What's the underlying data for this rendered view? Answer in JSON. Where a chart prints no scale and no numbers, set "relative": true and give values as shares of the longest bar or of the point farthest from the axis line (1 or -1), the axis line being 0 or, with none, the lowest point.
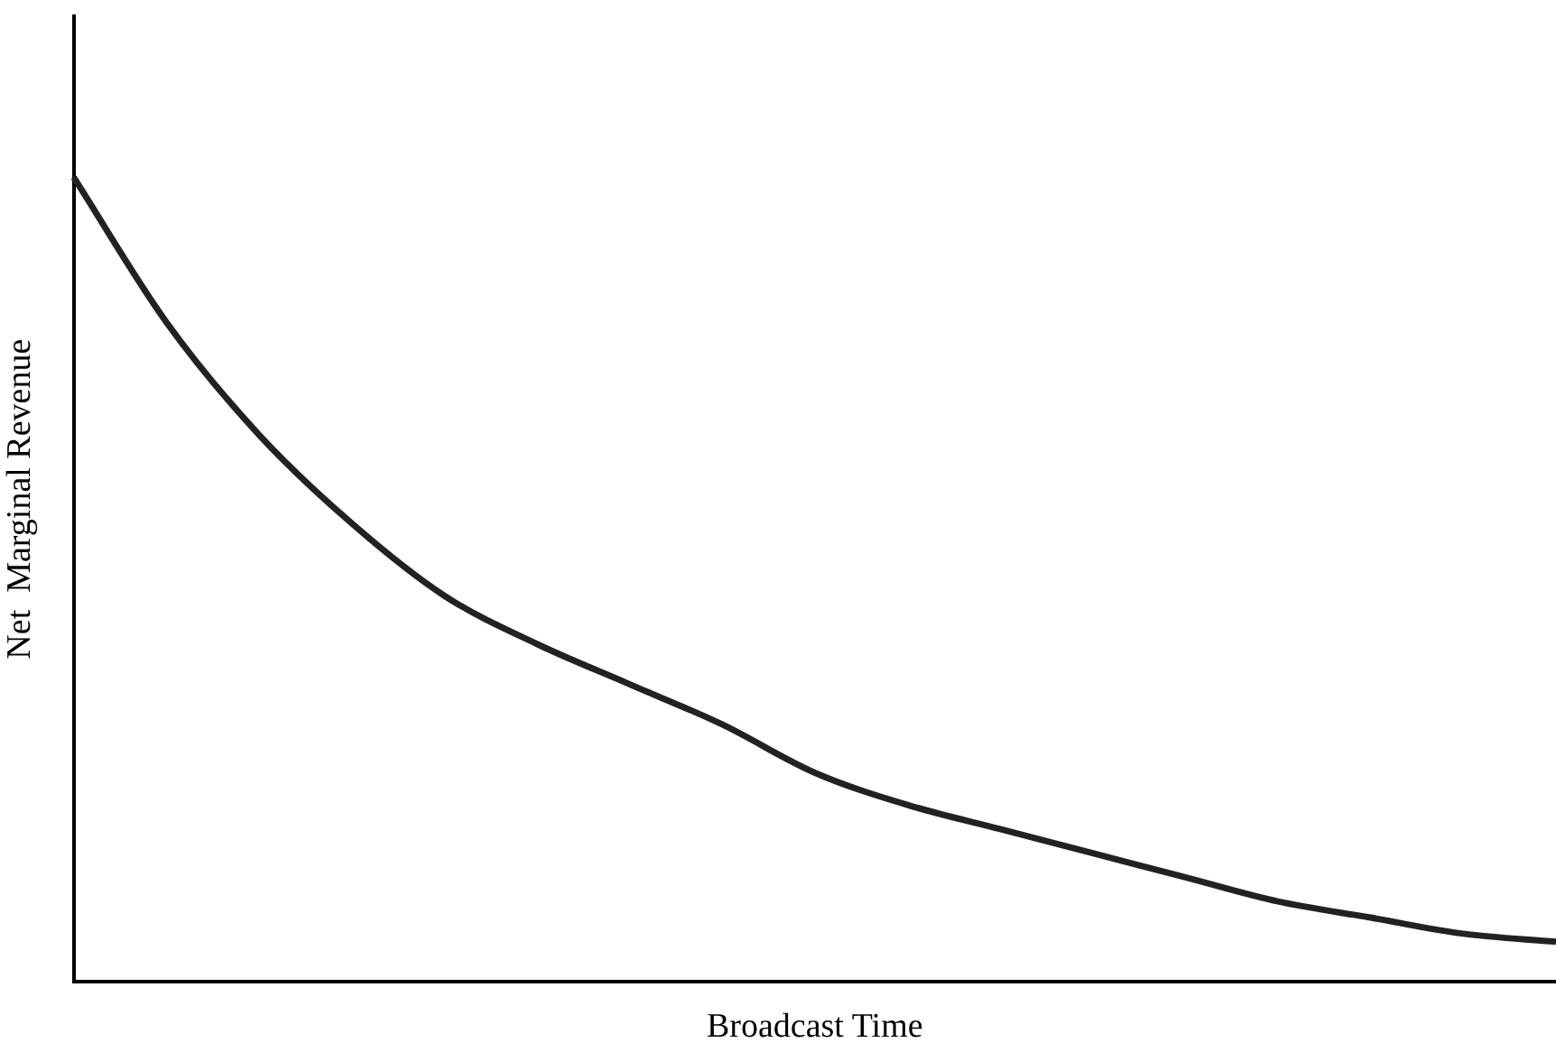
{
  "chart_data": {
    "type": "line",
    "relative": true,
    "xlabel": "Broadcast Time",
    "ylabel": "Net  Marginal Revenue",
    "categories": [
      null,
      null,
      null,
      null,
      null,
      null,
      null,
      null,
      null,
      null,
      null,
      null,
      null,
      null,
      null,
      null,
      null
    ],
    "series": [
      {
        "color": "#222222",
        "values": [
          1,
          0.82,
          0.68,
          0.57,
          0.48,
          0.42,
          0.37,
          0.32,
          0.26,
          0.22,
          0.19,
          0.16,
          0.13,
          0.1,
          0.08,
          0.06,
          0.05
        ]
      }
    ],
    "grid": false,
    "legend": false,
    "marker": "none"
  }
}
